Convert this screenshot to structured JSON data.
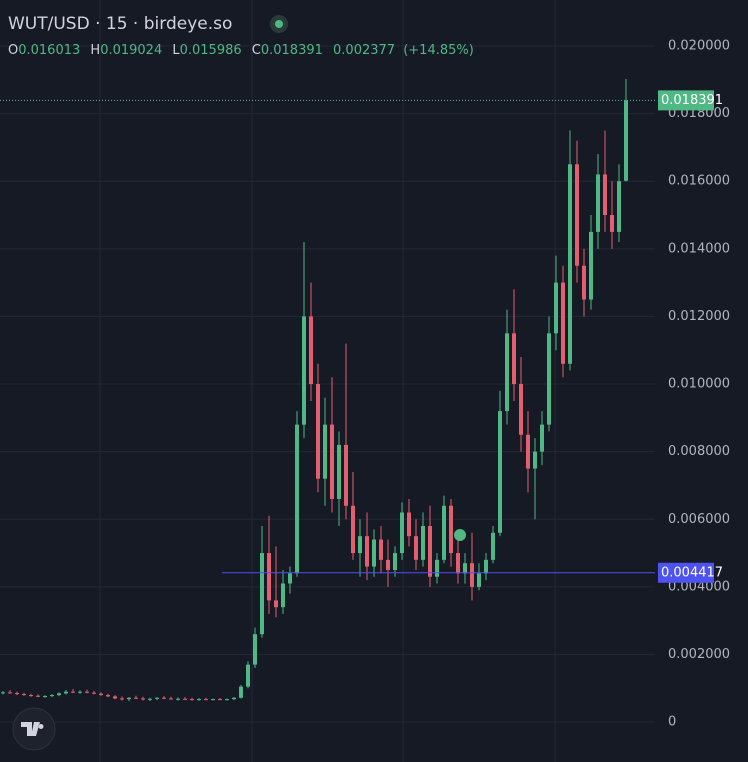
{
  "chart_data": {
    "type": "candlestick",
    "title": "WUT/USD · 15 · birdeye.so",
    "legend": {
      "open_label": "O",
      "open": "0.016013",
      "high_label": "H",
      "high": "0.019024",
      "low_label": "L",
      "low": "0.015986",
      "close_label": "C",
      "close": "0.018391",
      "change": "0.002377",
      "change_pct": "(+14.85%)"
    },
    "ylim": [
      -0.00118,
      0.02136
    ],
    "yticks": [
      0,
      {
        "value": 0.002,
        "label": "0.002000"
      },
      {
        "value": 0.004,
        "label": "0.004000"
      },
      {
        "value": 0.006,
        "label": "0.006000"
      },
      {
        "value": 0.008,
        "label": "0.008000"
      },
      {
        "value": 0.01,
        "label": "0.010000"
      },
      {
        "value": 0.012,
        "label": "0.012000"
      },
      {
        "value": 0.014,
        "label": "0.014000"
      },
      {
        "value": 0.016,
        "label": "0.016000"
      },
      {
        "value": 0.018,
        "label": "0.018000"
      },
      {
        "value": 0.02,
        "label": "0.020000"
      }
    ],
    "grid": true,
    "up_color": "#4fb884",
    "down_color": "#e35e6f",
    "last_price": 0.018391,
    "price_line": 0.004417,
    "price_line_color": "#4d52f0",
    "open": [
      0.00085,
      0.00088,
      0.00086,
      0.00083,
      0.0008,
      0.00078,
      0.00076,
      0.00077,
      0.0008,
      0.00085,
      0.0009,
      0.00088,
      0.0009,
      0.00087,
      0.00084,
      0.0008,
      0.00076,
      0.0007,
      0.00068,
      0.00072,
      0.0007,
      0.00067,
      0.00069,
      0.00072,
      0.0007,
      0.00068,
      0.00069,
      0.00068,
      0.00067,
      0.00068,
      0.00067,
      0.00068,
      0.00067,
      0.00068,
      0.00072,
      0.00105,
      0.0017,
      0.0026,
      0.005,
      0.0036,
      0.0034,
      0.0041,
      0.0044,
      0.0088,
      0.012,
      0.01,
      0.0072,
      0.0088,
      0.0066,
      0.0082,
      0.0064,
      0.005,
      0.0055,
      0.0046,
      0.0054,
      0.0048,
      0.0045,
      0.005,
      0.0062,
      0.0055,
      0.0048,
      0.0058,
      0.0043,
      0.0048,
      0.0064,
      0.005,
      0.0044,
      0.0047,
      0.004,
      0.0044,
      0.0048,
      0.0056,
      0.0092,
      0.0115,
      0.01,
      0.0085,
      0.0075,
      0.008,
      0.0088,
      0.0115,
      0.013,
      0.0106,
      0.0165,
      0.0135,
      0.0125,
      0.0145,
      0.0162,
      0.015,
      0.0145,
      0.016013
    ],
    "high": [
      0.00092,
      0.00095,
      0.0009,
      0.00087,
      0.00084,
      0.00082,
      0.0008,
      0.00083,
      0.00088,
      0.00095,
      0.00098,
      0.00094,
      0.00096,
      0.00092,
      0.00088,
      0.00084,
      0.0008,
      0.00076,
      0.00074,
      0.00078,
      0.00075,
      0.00072,
      0.00074,
      0.00077,
      0.00075,
      0.00073,
      0.00074,
      0.00072,
      0.00071,
      0.00072,
      0.0007,
      0.00071,
      0.0007,
      0.00074,
      0.0011,
      0.0018,
      0.0028,
      0.0058,
      0.0061,
      0.0052,
      0.0045,
      0.0046,
      0.0092,
      0.0142,
      0.013,
      0.0106,
      0.0096,
      0.0102,
      0.0086,
      0.0112,
      0.0074,
      0.006,
      0.0062,
      0.0057,
      0.0058,
      0.0054,
      0.0052,
      0.0065,
      0.0066,
      0.006,
      0.0062,
      0.0064,
      0.005,
      0.0067,
      0.0066,
      0.0054,
      0.005,
      0.0056,
      0.0047,
      0.005,
      0.0058,
      0.0098,
      0.0122,
      0.0128,
      0.0108,
      0.0092,
      0.0084,
      0.0092,
      0.012,
      0.0138,
      0.0135,
      0.0175,
      0.0172,
      0.014,
      0.015,
      0.0168,
      0.0175,
      0.016,
      0.0165,
      0.019024
    ],
    "low": [
      0.00082,
      0.00084,
      0.0008,
      0.00078,
      0.00075,
      0.00074,
      0.00072,
      0.00074,
      0.00077,
      0.00082,
      0.00086,
      0.00084,
      0.00085,
      0.00082,
      0.00078,
      0.00074,
      0.00068,
      0.00064,
      0.00062,
      0.00068,
      0.00064,
      0.00062,
      0.00065,
      0.00068,
      0.00066,
      0.00064,
      0.00066,
      0.00064,
      0.00063,
      0.00065,
      0.00064,
      0.00065,
      0.00064,
      0.00065,
      0.0007,
      0.001,
      0.0016,
      0.0025,
      0.0032,
      0.0031,
      0.0032,
      0.0038,
      0.0043,
      0.0084,
      0.0095,
      0.0068,
      0.0064,
      0.0062,
      0.0058,
      0.006,
      0.0048,
      0.0043,
      0.0042,
      0.0043,
      0.0044,
      0.004,
      0.0043,
      0.0048,
      0.0052,
      0.0045,
      0.0046,
      0.004,
      0.0041,
      0.0047,
      0.0046,
      0.0041,
      0.0041,
      0.0036,
      0.0039,
      0.0042,
      0.0047,
      0.0055,
      0.0088,
      0.0095,
      0.008,
      0.0068,
      0.006,
      0.0076,
      0.0086,
      0.011,
      0.0102,
      0.0104,
      0.013,
      0.012,
      0.0122,
      0.014,
      0.0145,
      0.014,
      0.0142,
      0.015986
    ],
    "close": [
      0.00088,
      0.00086,
      0.00083,
      0.0008,
      0.00078,
      0.00076,
      0.00077,
      0.0008,
      0.00085,
      0.0009,
      0.00088,
      0.0009,
      0.00087,
      0.00084,
      0.0008,
      0.00076,
      0.0007,
      0.00068,
      0.00072,
      0.0007,
      0.00067,
      0.00069,
      0.00072,
      0.0007,
      0.00068,
      0.00069,
      0.00068,
      0.00067,
      0.00068,
      0.00067,
      0.00068,
      0.00067,
      0.00068,
      0.00072,
      0.00105,
      0.0017,
      0.0026,
      0.005,
      0.0036,
      0.0034,
      0.0041,
      0.0044,
      0.0088,
      0.012,
      0.01,
      0.0072,
      0.0088,
      0.0066,
      0.0082,
      0.0064,
      0.005,
      0.0055,
      0.0046,
      0.0054,
      0.0048,
      0.0045,
      0.005,
      0.0062,
      0.0055,
      0.0048,
      0.0058,
      0.0043,
      0.0048,
      0.0064,
      0.005,
      0.0044,
      0.0047,
      0.004,
      0.0044,
      0.0048,
      0.0056,
      0.0092,
      0.0115,
      0.01,
      0.0085,
      0.0075,
      0.008,
      0.0088,
      0.0115,
      0.013,
      0.0106,
      0.0165,
      0.0135,
      0.0125,
      0.0145,
      0.0162,
      0.015,
      0.0145,
      0.016,
      0.018391
    ]
  }
}
